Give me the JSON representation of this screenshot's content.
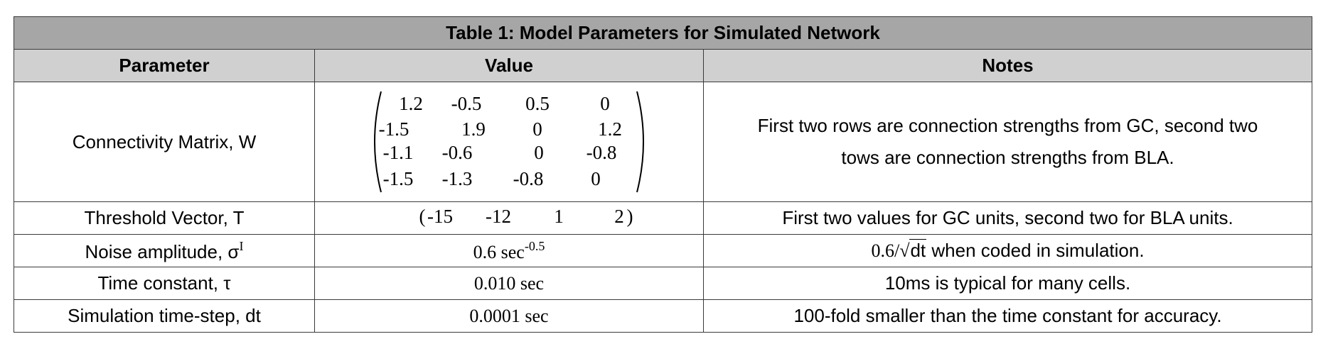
{
  "table": {
    "caption": "Table 1: Model Parameters for Simulated Network",
    "headers": [
      "Parameter",
      "Value",
      "Notes"
    ],
    "rows": [
      {
        "parameter": "Connectivity Matrix, W",
        "matrix": [
          [
            "1.2",
            "-0.5",
            "0.5",
            "0"
          ],
          [
            "-1.5",
            "1.9",
            "0",
            "1.2"
          ],
          [
            "-1.1",
            "-0.6",
            "0",
            "-0.8"
          ],
          [
            "-1.5",
            "-1.3",
            "-0.8",
            "0"
          ]
        ],
        "notes_line1": "First two rows are connection strengths from GC, second two",
        "notes_line2": "tows are connection strengths from BLA."
      },
      {
        "parameter": "Threshold Vector, T",
        "vector_open": "(",
        "vector": [
          "-15",
          "-12",
          "1",
          "2"
        ],
        "vector_close": ")",
        "notes": "First two values for GC units, second two for BLA units."
      },
      {
        "parameter_text": "Noise amplitude, σ",
        "parameter_sup": "I",
        "value_text": "0.6 sec",
        "value_sup": "-0.5",
        "notes_prefix": "0.6/",
        "notes_sqrt_symbol": "√",
        "notes_sqrt_body": "dt",
        "notes_suffix": " when coded in simulation."
      },
      {
        "parameter": "Time constant, τ",
        "value": "0.010 sec",
        "notes": "10ms is typical for many cells."
      },
      {
        "parameter": "Simulation time-step, dt",
        "value": "0.0001 sec",
        "notes": "100-fold smaller than the time constant for accuracy."
      }
    ]
  }
}
